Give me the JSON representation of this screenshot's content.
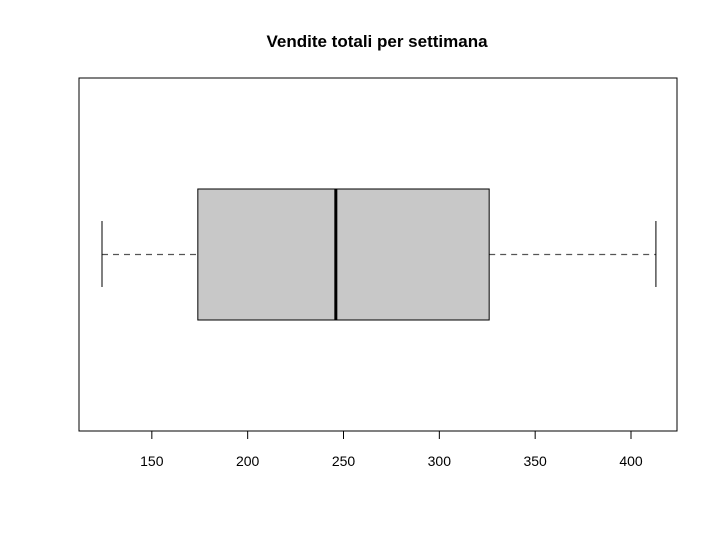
{
  "chart_data": {
    "type": "boxplot",
    "orientation": "horizontal",
    "title": "Vendite totali per settimana",
    "xlabel": "",
    "ylabel": "",
    "xlim": [
      112,
      424
    ],
    "xticks": [
      150,
      200,
      250,
      300,
      350,
      400
    ],
    "grid": false,
    "box": {
      "min": 124,
      "q1": 174,
      "median": 246,
      "q3": 326,
      "max": 413
    },
    "colors": {
      "box_fill": "#c8c8c8",
      "stroke": "#000000",
      "whisker": "#555555"
    }
  }
}
